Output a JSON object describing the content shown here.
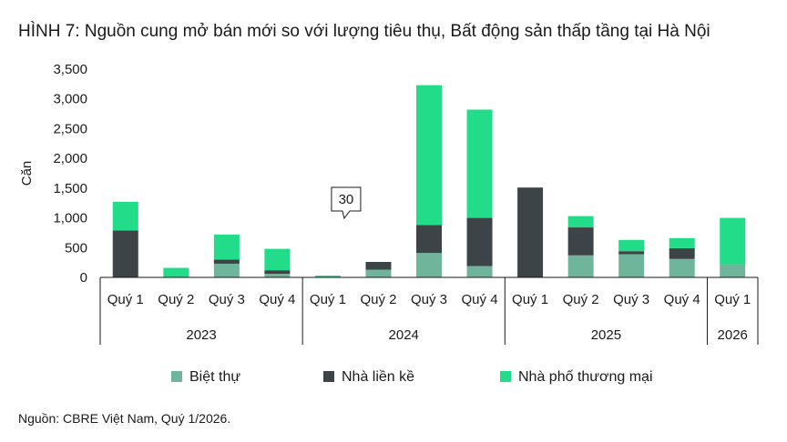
{
  "title": "HÌNH 7: Nguồn cung mở bán mới so với lượng tiêu thụ, Bất động sản thấp tầng tại Hà Nội",
  "source": "Nguồn: CBRE Việt Nam, Quý 1/2026.",
  "colors": {
    "biet_thu": "#6fb59c",
    "nha_lien_ke": "#3c4447",
    "nha_pho_thuong_mai": "#22dc8a"
  },
  "chart_data": {
    "type": "bar",
    "stacked": true,
    "ylabel": "Căn",
    "ylim": [
      0,
      3500
    ],
    "yticks": [
      "0",
      "500",
      "1,000",
      "1,500",
      "2,000",
      "2,500",
      "3,000",
      "3,500"
    ],
    "grid": false,
    "legend_position": "bottom",
    "categories": [
      "Quý 1",
      "Quý 2",
      "Quý 3",
      "Quý 4",
      "Quý 1",
      "Quý 2",
      "Quý 3",
      "Quý 4",
      "Quý 1",
      "Quý 2",
      "Quý 3",
      "Quý 4",
      "Quý 1"
    ],
    "groups": [
      {
        "label": "2023",
        "count": 4
      },
      {
        "label": "2024",
        "count": 4
      },
      {
        "label": "2025",
        "count": 4
      },
      {
        "label": "2026",
        "count": 1
      }
    ],
    "series": [
      {
        "name": "Biệt thự",
        "color_key": "biet_thu",
        "values": [
          0,
          0,
          230,
          60,
          0,
          130,
          410,
          190,
          0,
          370,
          390,
          310,
          220
        ]
      },
      {
        "name": "Nhà liền kề",
        "color_key": "nha_lien_ke",
        "values": [
          790,
          0,
          70,
          60,
          0,
          130,
          470,
          810,
          1510,
          470,
          50,
          180,
          0
        ]
      },
      {
        "name": "Nhà phố thương mại",
        "color_key": "nha_pho_thuong_mai",
        "values": [
          480,
          160,
          420,
          360,
          30,
          0,
          2350,
          1820,
          0,
          190,
          190,
          170,
          780
        ]
      }
    ],
    "annotations": [
      {
        "text": "30",
        "category_index": 4
      }
    ]
  }
}
